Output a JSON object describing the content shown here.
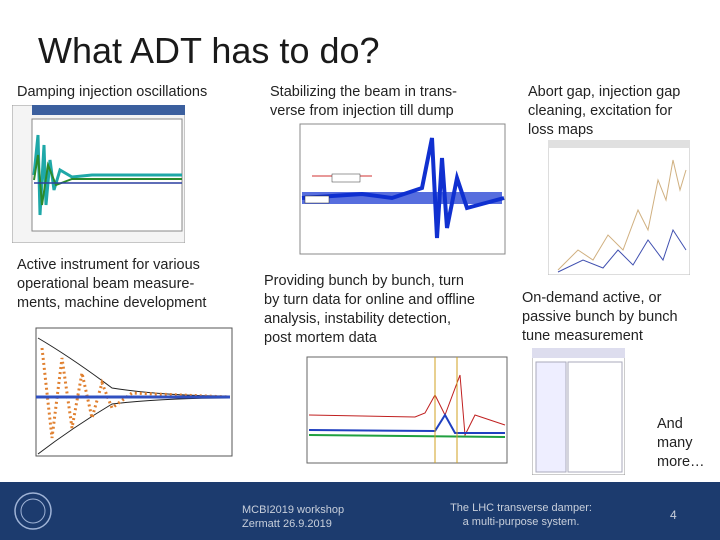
{
  "header": {
    "title": "What ADT has to do?"
  },
  "blocks": [
    {
      "lines": [
        "Damping injection oscillations"
      ]
    },
    {
      "lines": [
        "Stabilizing the beam in trans-",
        "verse from injection till dump"
      ]
    },
    {
      "lines": [
        "Abort gap, injection gap",
        "cleaning, excitation for",
        "loss maps"
      ]
    },
    {
      "lines": [
        "Active instrument for various",
        "operational beam measure-",
        "ments, machine development"
      ]
    },
    {
      "lines": [
        "Providing bunch by bunch, turn",
        "by turn data for online and offline",
        "analysis, instability detection,",
        "post mortem data"
      ]
    },
    {
      "lines": [
        "On-demand active, or",
        "passive bunch by bunch",
        "tune measurement"
      ]
    },
    {
      "lines": [
        "And",
        "many",
        "more…"
      ]
    }
  ],
  "footer": {
    "event": [
      "MCBI2019 workshop",
      "Zermatt 26.9.2019"
    ],
    "subject": [
      "The LHC transverse damper:",
      "a multi-purpose system."
    ],
    "page": "4"
  }
}
